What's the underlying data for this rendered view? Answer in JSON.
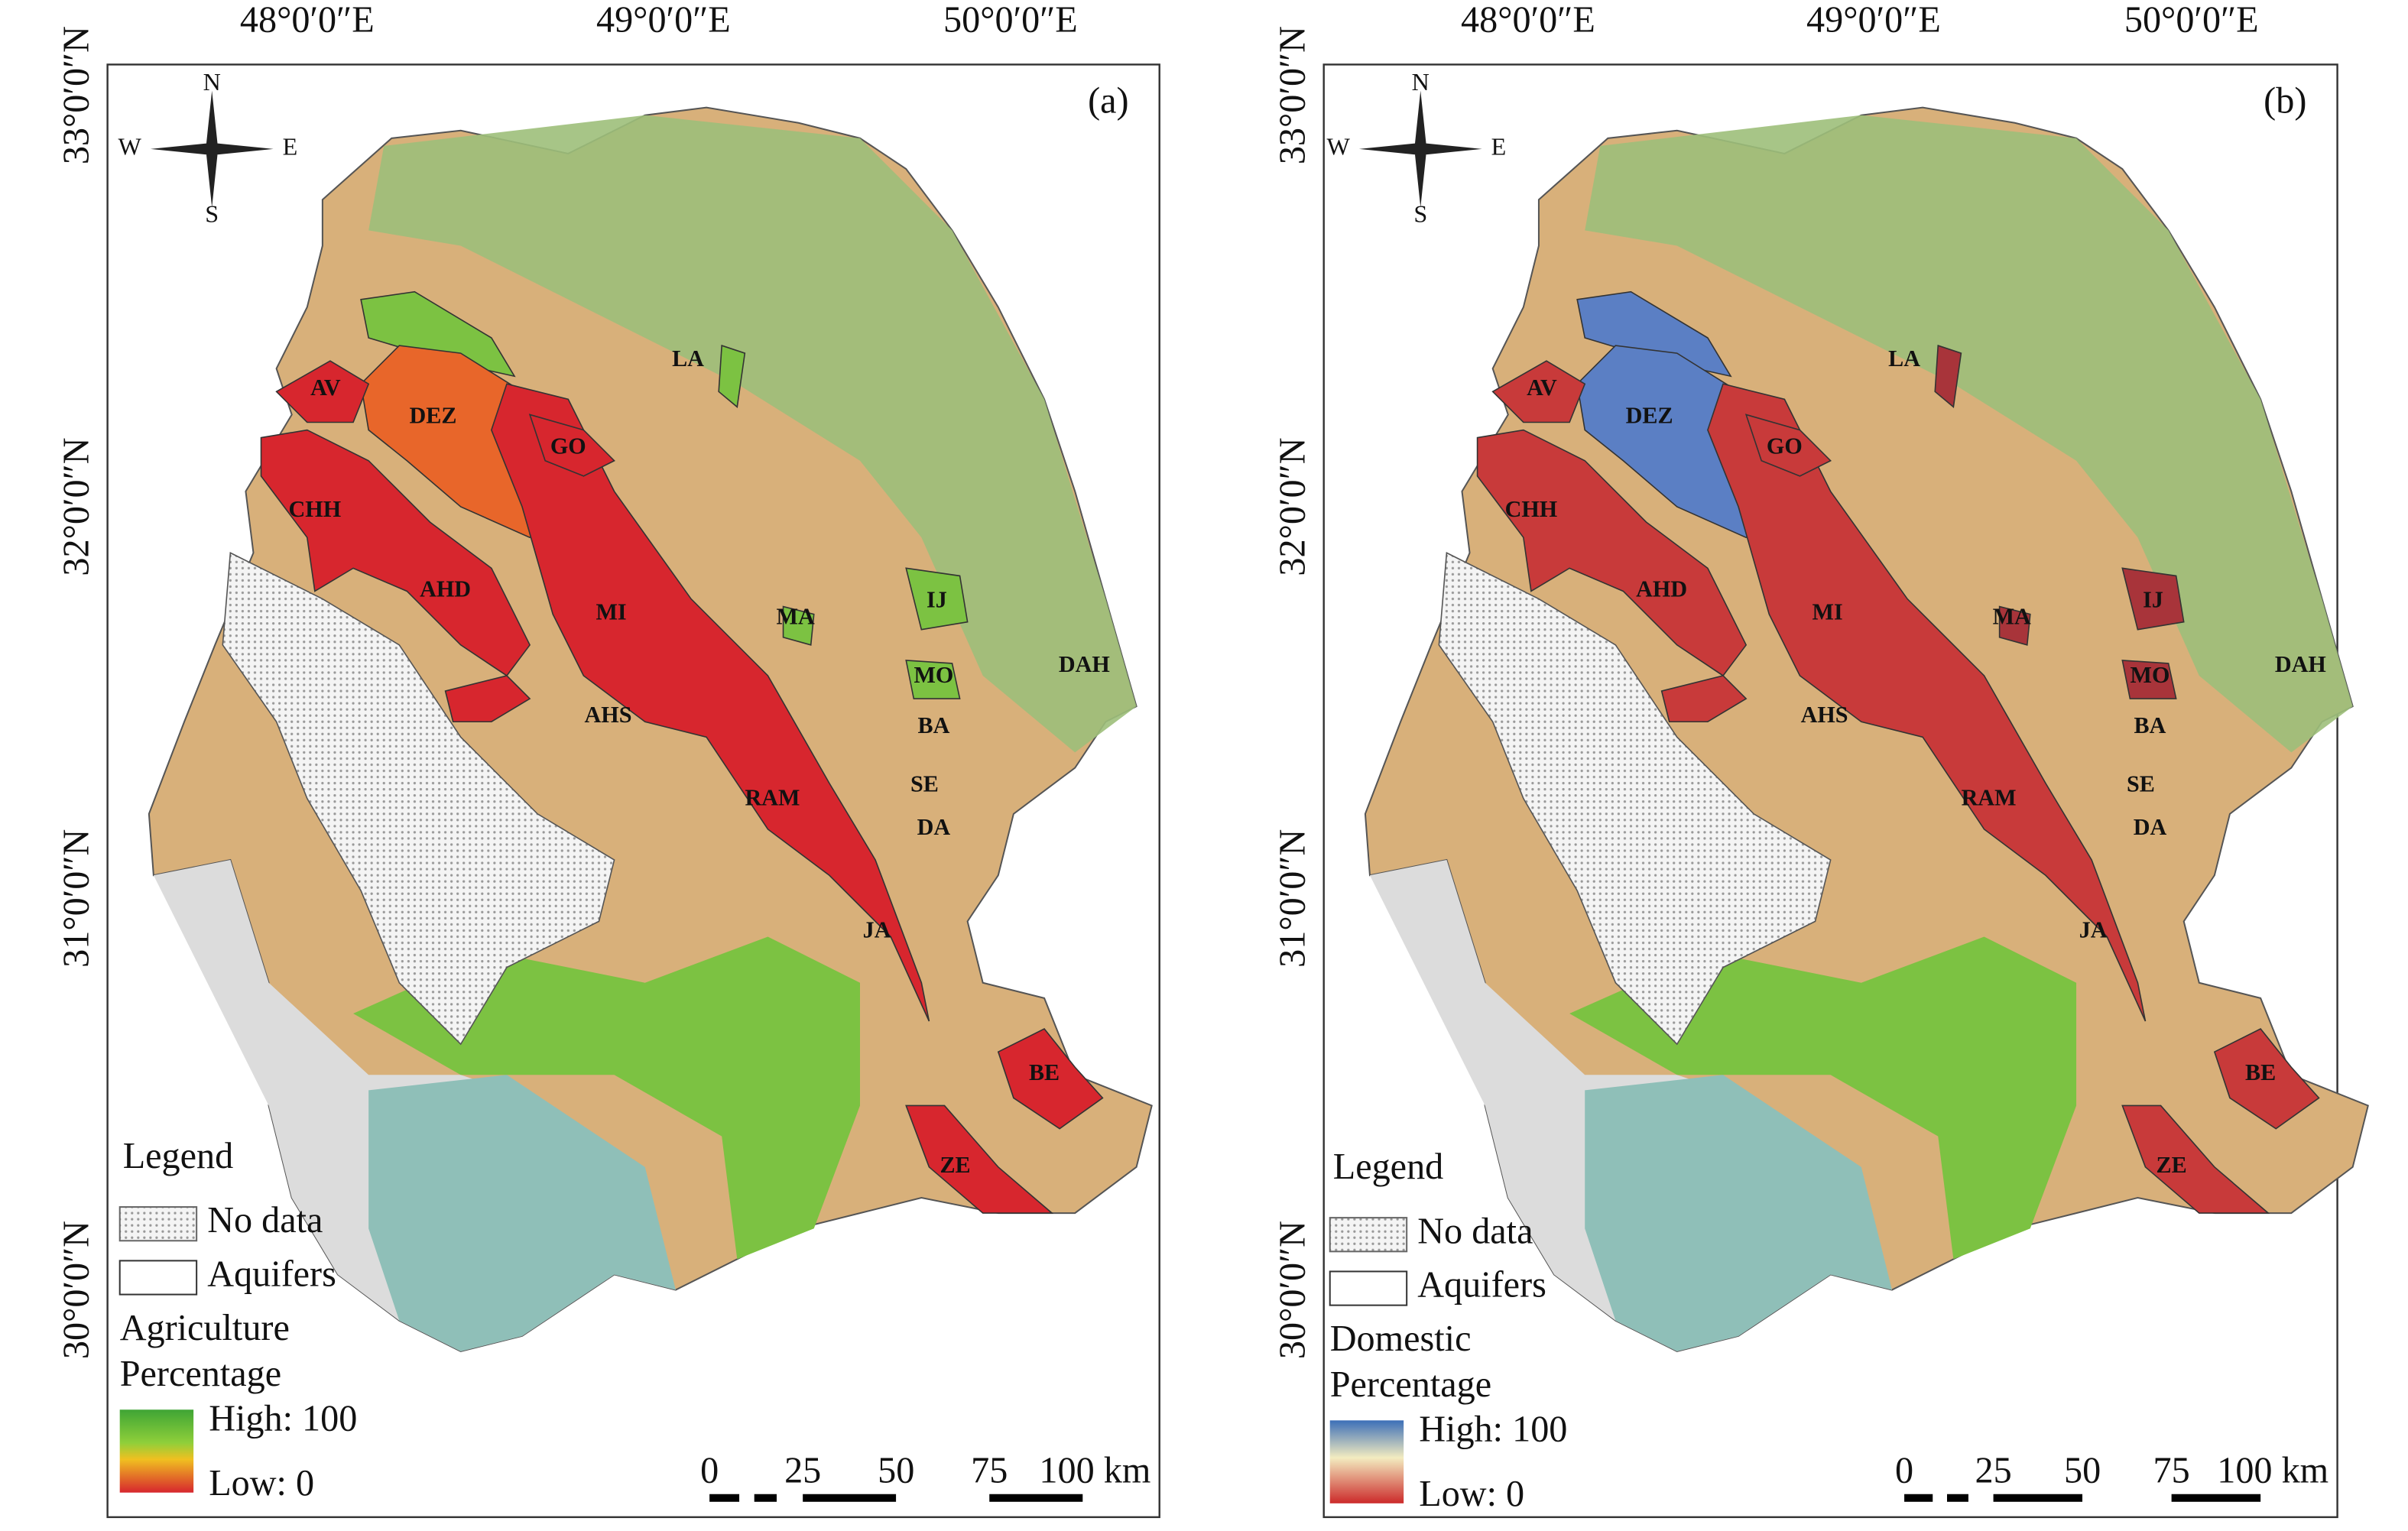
{
  "panels": [
    {
      "label": "(a)",
      "lon_labels": [
        "48°0′0″E",
        "49°0′0″E",
        "50°0′0″E"
      ],
      "lat_labels": [
        "33°0′0″N",
        "32°0′0″N",
        "31°0′0″N",
        "30°0′0″N"
      ],
      "compass": {
        "n": "N",
        "e": "E",
        "s": "S",
        "w": "W"
      },
      "aquifers": [
        "LA",
        "AV",
        "DEZ",
        "GO",
        "CHH",
        "AHD",
        "MI",
        "AHS",
        "MA",
        "IJ",
        "MO",
        "DAH",
        "BA",
        "SE",
        "DA",
        "RAM",
        "JA",
        "BE",
        "ZE"
      ],
      "legend": {
        "title": "Legend",
        "no_data": "No data",
        "aquifers": "Aquifers",
        "layer": [
          "Agriculture",
          "Percentage"
        ],
        "high": "High: 100",
        "low": "Low: 0"
      },
      "scale": [
        "0",
        "25",
        "50",
        "75",
        "100 km"
      ]
    },
    {
      "label": "(b)",
      "lon_labels": [
        "48°0′0″E",
        "49°0′0″E",
        "50°0′0″E"
      ],
      "lat_labels": [
        "33°0′0″N",
        "32°0′0″N",
        "31°0′0″N",
        "30°0′0″N"
      ],
      "compass": {
        "n": "N",
        "e": "E",
        "s": "S",
        "w": "W"
      },
      "aquifers": [
        "LA",
        "AV",
        "DEZ",
        "GO",
        "CHH",
        "AHD",
        "MI",
        "AHS",
        "MA",
        "IJ",
        "MO",
        "DAH",
        "BA",
        "SE",
        "DA",
        "RAM",
        "JA",
        "BE",
        "ZE"
      ],
      "legend": {
        "title": "Legend",
        "no_data": "No data",
        "aquifers": "Aquifers",
        "layer": [
          "Domestic",
          "Percentage"
        ],
        "high": "High: 100",
        "low": "Low: 0"
      },
      "scale": [
        "0",
        "25",
        "50",
        "75",
        "100 km"
      ]
    }
  ]
}
